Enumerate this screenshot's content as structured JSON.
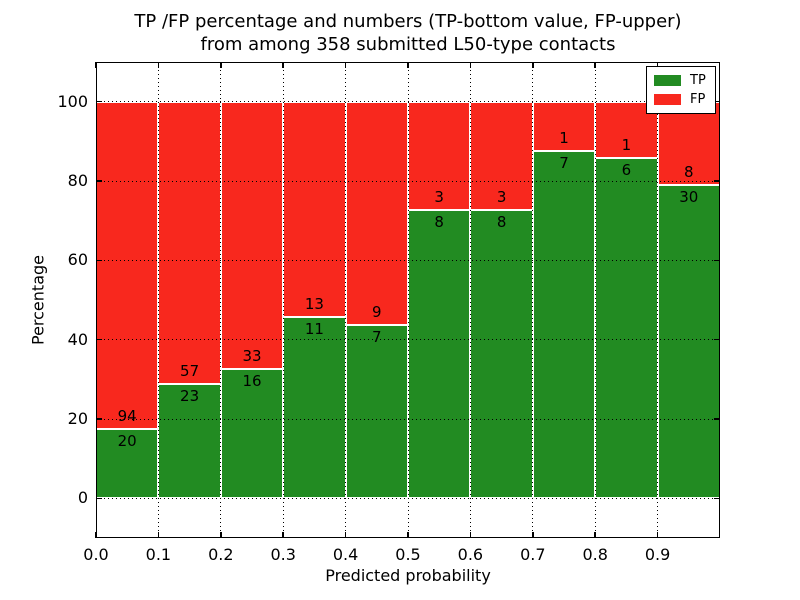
{
  "title": {
    "line1": "TP /FP percentage and numbers (TP-bottom value, FP-upper)",
    "line2": "from among 358 submitted L50-type contacts"
  },
  "chart_data": {
    "type": "bar",
    "stacked": true,
    "normalized_to_percent": true,
    "total_contacts": 358,
    "x": [
      0.0,
      0.1,
      0.2,
      0.3,
      0.4,
      0.5,
      0.6,
      0.7,
      0.8,
      0.9
    ],
    "bin_width": 0.1,
    "series": [
      {
        "name": "TP",
        "color": "#228b22",
        "counts": [
          20,
          23,
          16,
          11,
          7,
          8,
          8,
          7,
          6,
          30
        ]
      },
      {
        "name": "FP",
        "color": "#f8281e",
        "counts": [
          94,
          57,
          33,
          13,
          9,
          3,
          3,
          1,
          1,
          8
        ]
      }
    ],
    "tp_percent": [
      17.544,
      28.75,
      32.653,
      45.833,
      43.75,
      72.727,
      72.727,
      87.5,
      85.714,
      78.947
    ],
    "xlabel": "Predicted probability",
    "ylabel": "Percentage",
    "x_tick_labels": [
      "0.0",
      "0.1",
      "0.2",
      "0.3",
      "0.4",
      "0.5",
      "0.6",
      "0.7",
      "0.8",
      "0.9"
    ],
    "y_ticks": [
      0,
      20,
      40,
      60,
      80,
      100
    ],
    "xlim": [
      0.0,
      1.0
    ],
    "ylim": [
      -10,
      110
    ],
    "grid": {
      "style": "dotted",
      "color": "#000000"
    },
    "bar_edge_color": "#ffffff",
    "background": "#ffffff",
    "legend": {
      "position": "upper-right",
      "entries": [
        {
          "label": "TP",
          "color": "#228b22"
        },
        {
          "label": "FP",
          "color": "#f8281e"
        }
      ]
    }
  }
}
